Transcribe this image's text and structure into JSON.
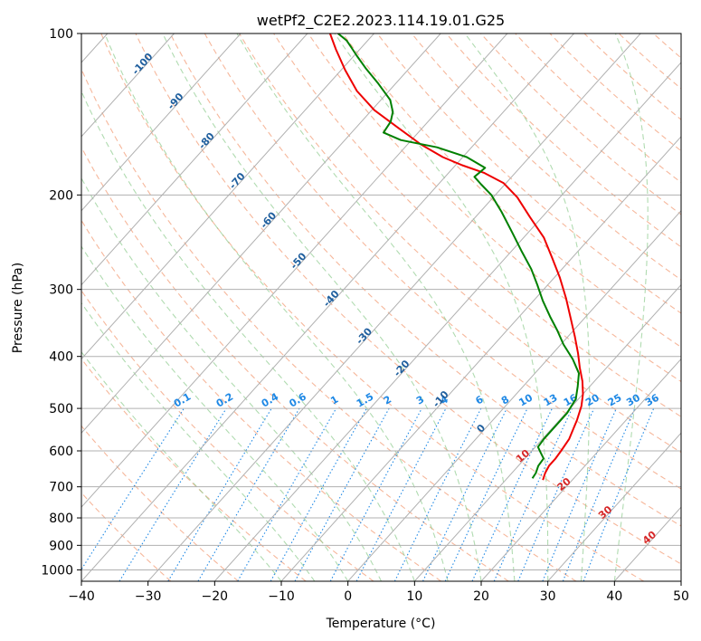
{
  "chart_data": {
    "type": "skew-t",
    "title": "wetPf2_C2E2.2023.114.19.01.G25",
    "xlabel": "Temperature (°C)",
    "ylabel": "Pressure (hPa)",
    "xlim": [
      -40,
      50
    ],
    "ylim": [
      1050,
      100
    ],
    "x_ticks": [
      "−40",
      "−30",
      "−20",
      "−10",
      "0",
      "10",
      "20",
      "30",
      "40",
      "50"
    ],
    "x_tick_values": [
      -40,
      -30,
      -20,
      -10,
      0,
      10,
      20,
      30,
      40,
      50
    ],
    "y_ticks": [
      "100",
      "200",
      "300",
      "400",
      "500",
      "600",
      "700",
      "800",
      "900",
      "1000"
    ],
    "y_tick_values": [
      100,
      200,
      300,
      400,
      500,
      600,
      700,
      800,
      900,
      1000
    ],
    "isotherm_labels": [
      {
        "text": "-100",
        "t": -100,
        "p": 115
      },
      {
        "text": "-90",
        "t": -90,
        "p": 135
      },
      {
        "text": "-80",
        "t": -80,
        "p": 160
      },
      {
        "text": "-70",
        "t": -70,
        "p": 190
      },
      {
        "text": "-60",
        "t": -60,
        "p": 225
      },
      {
        "text": "-50",
        "t": -50,
        "p": 268
      },
      {
        "text": "-40",
        "t": -40,
        "p": 315
      },
      {
        "text": "-30",
        "t": -30,
        "p": 370
      },
      {
        "text": "-20",
        "t": -20,
        "p": 425
      },
      {
        "text": "-10",
        "t": -10,
        "p": 485
      },
      {
        "text": "0",
        "t": 0,
        "p": 550
      }
    ],
    "dry_adiabat_labels": [
      {
        "text": "10",
        "t": 10,
        "p": 620
      },
      {
        "text": "20",
        "t": 20,
        "p": 700
      },
      {
        "text": "30",
        "t": 30,
        "p": 790
      },
      {
        "text": "40",
        "t": 40,
        "p": 880
      }
    ],
    "mixing_ratio_labels": [
      "0.1",
      "0.2",
      "0.4",
      "0.6",
      "1",
      "1.5",
      "2",
      "3",
      "4",
      "6",
      "8",
      "10",
      "13",
      "16",
      "20",
      "25",
      "30",
      "36"
    ],
    "mixing_ratio_values": [
      0.1,
      0.2,
      0.4,
      0.6,
      1,
      1.5,
      2,
      3,
      4,
      6,
      8,
      10,
      13,
      16,
      20,
      25,
      30,
      36
    ],
    "series": [
      {
        "name": "temperature",
        "color": "#ee0000",
        "points": [
          [
            15.6,
            680
          ],
          [
            15.0,
            660
          ],
          [
            14.6,
            640
          ],
          [
            14.6,
            620
          ],
          [
            14.4,
            600
          ],
          [
            14.0,
            570
          ],
          [
            12.6,
            525
          ],
          [
            11.4,
            495
          ],
          [
            10.0,
            470
          ],
          [
            8.2,
            445
          ],
          [
            6.0,
            420
          ],
          [
            3.8,
            395
          ],
          [
            1.0,
            367
          ],
          [
            -2.0,
            340
          ],
          [
            -5.4,
            312
          ],
          [
            -9.2,
            285
          ],
          [
            -13.0,
            262
          ],
          [
            -17.0,
            240
          ],
          [
            -21.8,
            220
          ],
          [
            -26.4,
            202
          ],
          [
            -30.4,
            190
          ],
          [
            -34.6,
            182
          ],
          [
            -39.0,
            176
          ],
          [
            -43.0,
            170
          ],
          [
            -48.0,
            161
          ],
          [
            -53.6,
            150
          ],
          [
            -59.6,
            139
          ],
          [
            -64.8,
            128
          ],
          [
            -69.4,
            117
          ],
          [
            -73.6,
            107
          ],
          [
            -76.6,
            100
          ]
        ]
      },
      {
        "name": "dewpoint",
        "color": "#008000",
        "points": [
          [
            13.8,
            675
          ],
          [
            13.6,
            660
          ],
          [
            13.0,
            640
          ],
          [
            12.8,
            620
          ],
          [
            11.6,
            605
          ],
          [
            10.4,
            590
          ],
          [
            10.2,
            570
          ],
          [
            10.2,
            540
          ],
          [
            10.2,
            510
          ],
          [
            9.6,
            480
          ],
          [
            8.2,
            455
          ],
          [
            6.6,
            430
          ],
          [
            3.8,
            405
          ],
          [
            0.4,
            380
          ],
          [
            -2.4,
            358
          ],
          [
            -5.4,
            337
          ],
          [
            -8.6,
            315
          ],
          [
            -11.6,
            294
          ],
          [
            -14.6,
            275
          ],
          [
            -18.4,
            255
          ],
          [
            -22.4,
            235
          ],
          [
            -26.8,
            215
          ],
          [
            -30.6,
            200
          ],
          [
            -33.6,
            191
          ],
          [
            -35.6,
            185
          ],
          [
            -35.2,
            178
          ],
          [
            -39.4,
            170
          ],
          [
            -45.2,
            163
          ],
          [
            -51.6,
            158
          ],
          [
            -55.2,
            153
          ],
          [
            -55.6,
            146
          ],
          [
            -56.6,
            140
          ],
          [
            -58.6,
            133
          ],
          [
            -62.6,
            124
          ],
          [
            -66.6,
            116
          ],
          [
            -69.6,
            110
          ],
          [
            -71.6,
            106
          ],
          [
            -73.2,
            103
          ],
          [
            -75.4,
            100
          ]
        ]
      }
    ]
  }
}
